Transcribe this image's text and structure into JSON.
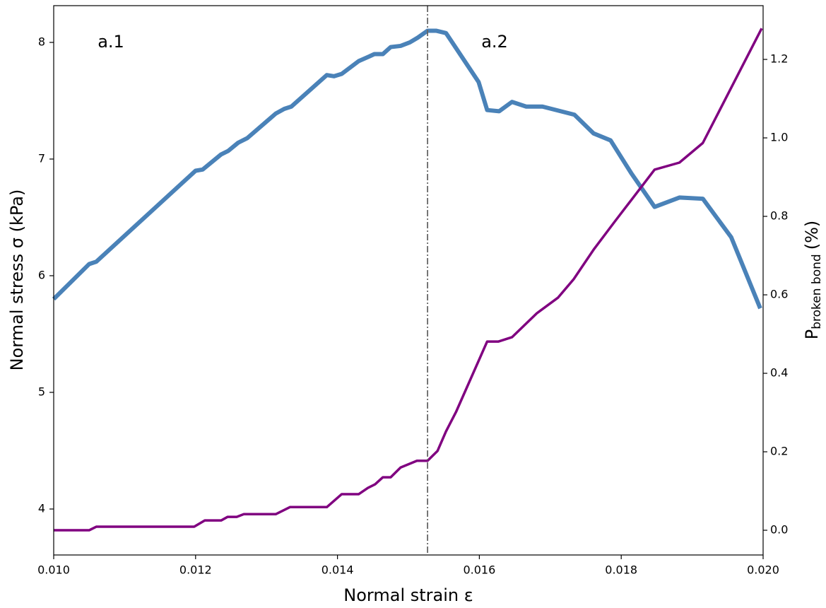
{
  "chart_data": {
    "type": "line",
    "x_label": "Normal strain ε",
    "y_label": "Normal stress σ (kPa)",
    "y2_label": {
      "main": "P",
      "sub": "broken bond",
      "unit": "(%)"
    },
    "annotations": [
      "a.1",
      "a.2"
    ],
    "vline": 0.01527,
    "xlim": [
      0.01,
      0.02
    ],
    "xticks": [
      {
        "value": 0.01,
        "label": "0.010"
      },
      {
        "value": 0.012,
        "label": "0.012"
      },
      {
        "value": 0.014,
        "label": "0.014"
      },
      {
        "value": 0.016,
        "label": "0.016"
      },
      {
        "value": 0.018,
        "label": "0.018"
      },
      {
        "value": 0.02,
        "label": "0.020"
      }
    ],
    "ylim": [
      3.606,
      8.315
    ],
    "yticks": [
      4,
      5,
      6,
      7,
      8
    ],
    "y2lim": [
      -0.063,
      1.337
    ],
    "y2ticks": [
      {
        "value": 0,
        "label": "0.0"
      },
      0.2,
      0.4,
      0.6,
      0.8,
      {
        "value": 1,
        "label": "1.0"
      },
      1.2
    ],
    "series": [
      {
        "color": "#4a82b8",
        "width": 6,
        "x": [
          0.01,
          0.0105,
          0.0106,
          0.012,
          0.0121,
          0.01236,
          0.01246,
          0.0126,
          0.01273,
          0.01313,
          0.01325,
          0.01335,
          0.01385,
          0.01395,
          0.01406,
          0.0143,
          0.01445,
          0.01452,
          0.01464,
          0.01475,
          0.01489,
          0.01502,
          0.01513,
          0.01527,
          0.01539,
          0.01553,
          0.01599,
          0.01611,
          0.01628,
          0.01646,
          0.01666,
          0.01689,
          0.01734,
          0.01761,
          0.01785,
          0.01814,
          0.01847,
          0.01882,
          0.01915,
          0.01955,
          0.01996
        ],
        "values": [
          5.8,
          6.1,
          6.12,
          6.9,
          6.91,
          7.04,
          7.07,
          7.14,
          7.18,
          7.39,
          7.43,
          7.45,
          7.72,
          7.71,
          7.73,
          7.84,
          7.88,
          7.9,
          7.9,
          7.96,
          7.97,
          8.0,
          8.04,
          8.1,
          8.1,
          8.08,
          7.66,
          7.42,
          7.41,
          7.49,
          7.45,
          7.45,
          7.38,
          7.22,
          7.16,
          6.88,
          6.59,
          6.67,
          6.66,
          6.33,
          5.72
        ]
      },
      {
        "color": "#800080",
        "width": 3.5,
        "axis": "y2",
        "x": [
          0.01,
          0.0105,
          0.0106,
          0.01198,
          0.01213,
          0.01236,
          0.01245,
          0.01258,
          0.01268,
          0.01313,
          0.01333,
          0.01385,
          0.01406,
          0.0143,
          0.01443,
          0.01453,
          0.01464,
          0.01475,
          0.01489,
          0.01512,
          0.01527,
          0.01541,
          0.01553,
          0.01567,
          0.01611,
          0.01627,
          0.01646,
          0.01681,
          0.01711,
          0.01733,
          0.01761,
          0.01791,
          0.01847,
          0.01882,
          0.01915,
          0.01998
        ],
        "values": [
          0.0,
          0.0,
          0.009,
          0.009,
          0.025,
          0.025,
          0.034,
          0.034,
          0.041,
          0.041,
          0.059,
          0.059,
          0.092,
          0.092,
          0.108,
          0.117,
          0.135,
          0.135,
          0.16,
          0.177,
          0.177,
          0.202,
          0.252,
          0.301,
          0.481,
          0.481,
          0.492,
          0.553,
          0.593,
          0.64,
          0.715,
          0.787,
          0.919,
          0.937,
          0.987,
          1.279
        ]
      }
    ]
  }
}
